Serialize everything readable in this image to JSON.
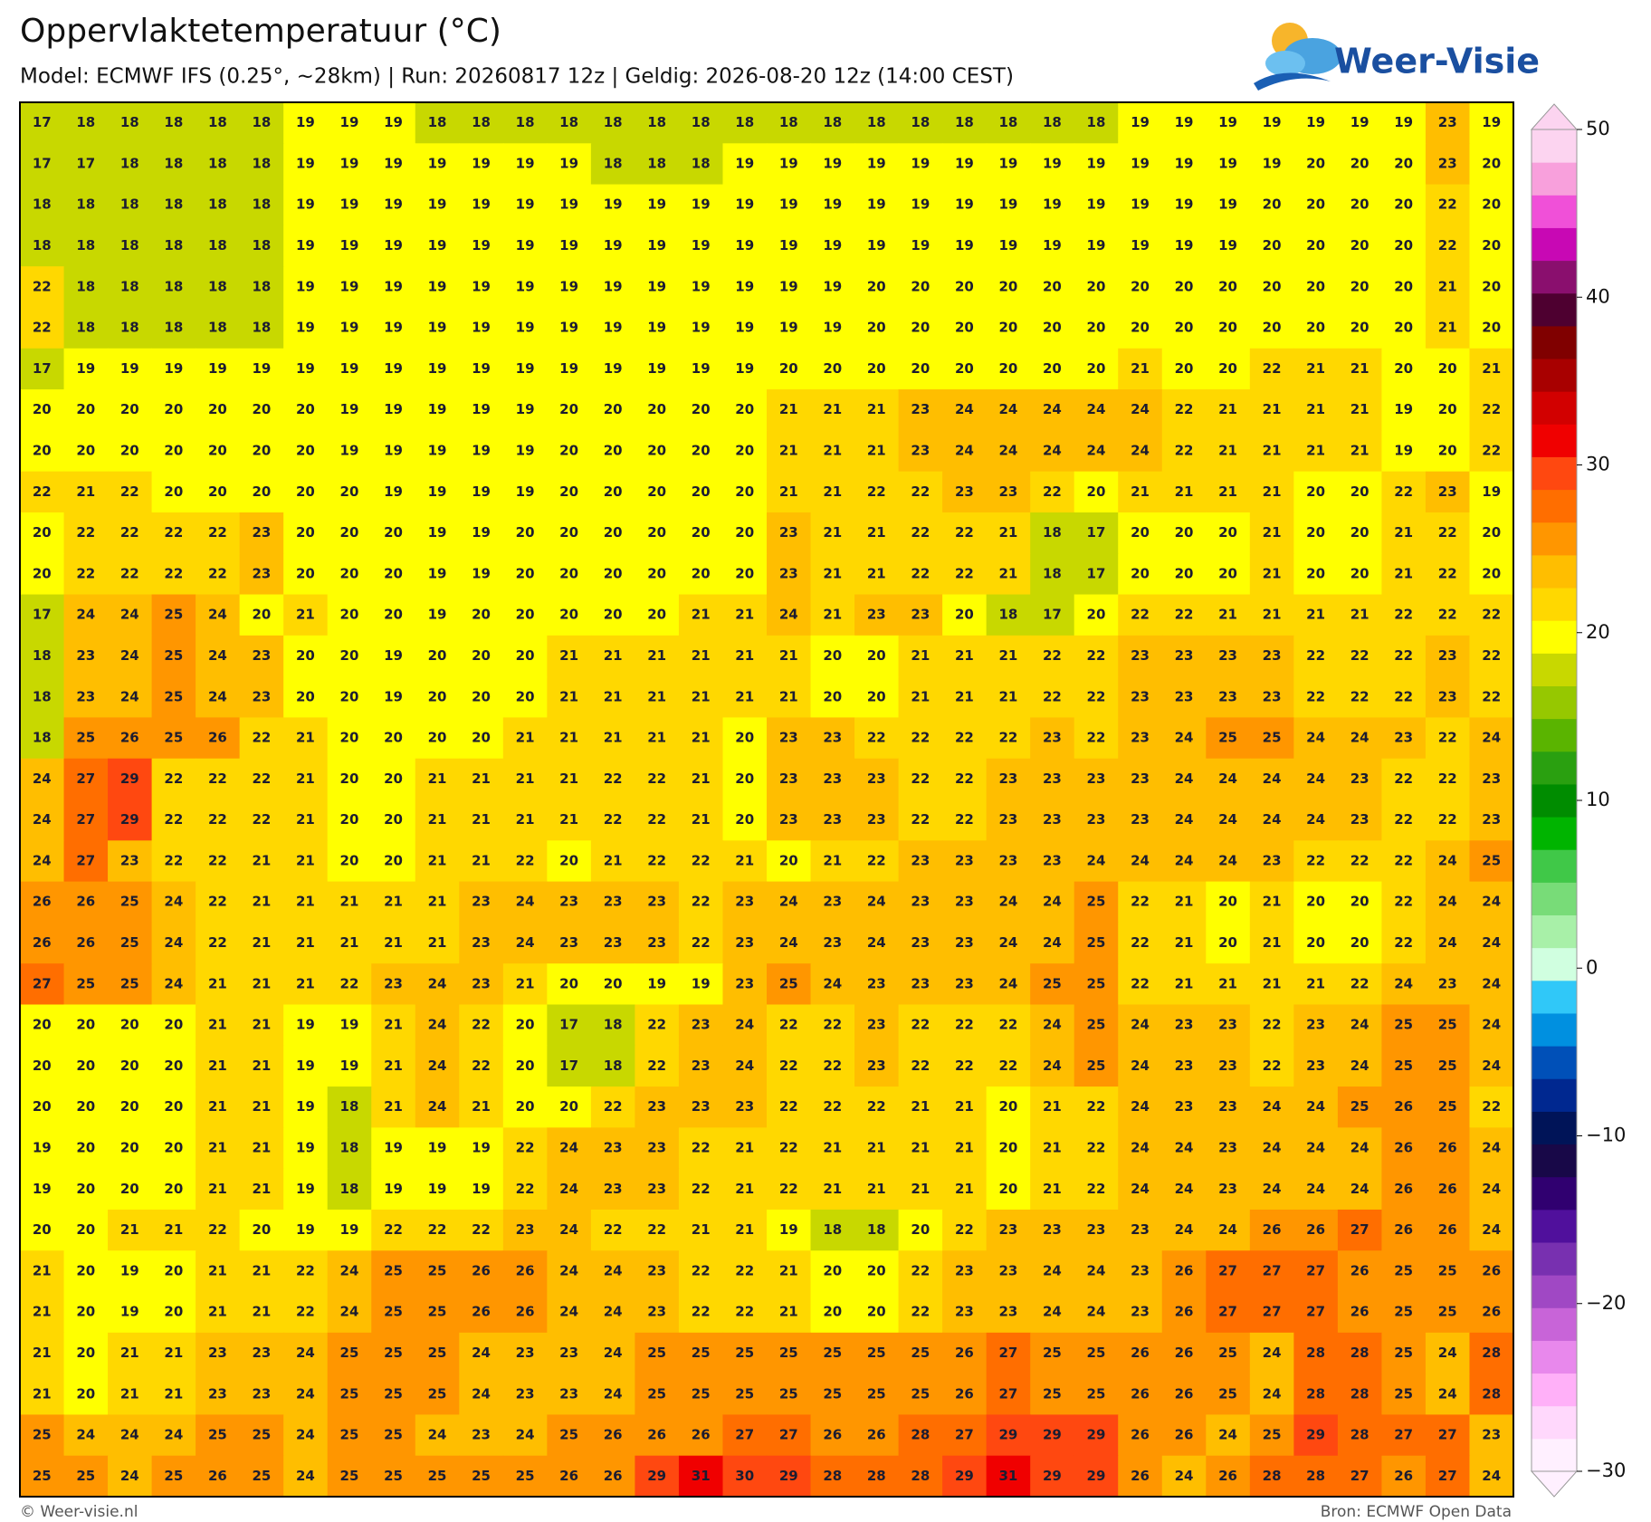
{
  "chart_data": {
    "type": "grid",
    "title": "Oppervlaktetemperatuur (°C)",
    "subtitle": "Model: ECMWF IFS (0.25°, ~28km)  |  Run: 20260817 12z  |  Geldig: 2026-08-20 12z (14:00 CEST)",
    "values": [
      [
        17,
        18,
        18,
        18,
        18,
        18,
        19,
        19,
        19,
        18,
        18,
        18,
        18,
        18,
        18,
        18,
        18,
        18,
        18,
        18,
        18,
        18,
        18,
        18,
        18,
        19,
        19,
        19,
        19,
        19,
        19,
        19,
        23,
        19
      ],
      [
        17,
        17,
        18,
        18,
        18,
        18,
        19,
        19,
        19,
        19,
        19,
        19,
        19,
        18,
        18,
        18,
        19,
        19,
        19,
        19,
        19,
        19,
        19,
        19,
        19,
        19,
        19,
        19,
        19,
        20,
        20,
        20,
        23,
        20
      ],
      [
        18,
        18,
        18,
        18,
        18,
        18,
        19,
        19,
        19,
        19,
        19,
        19,
        19,
        19,
        19,
        19,
        19,
        19,
        19,
        19,
        19,
        19,
        19,
        19,
        19,
        19,
        19,
        19,
        20,
        20,
        20,
        20,
        22,
        20
      ],
      [
        18,
        18,
        18,
        18,
        18,
        18,
        19,
        19,
        19,
        19,
        19,
        19,
        19,
        19,
        19,
        19,
        19,
        19,
        19,
        19,
        19,
        19,
        19,
        19,
        19,
        19,
        19,
        19,
        20,
        20,
        20,
        20,
        22,
        20
      ],
      [
        22,
        18,
        18,
        18,
        18,
        18,
        19,
        19,
        19,
        19,
        19,
        19,
        19,
        19,
        19,
        19,
        19,
        19,
        19,
        20,
        20,
        20,
        20,
        20,
        20,
        20,
        20,
        20,
        20,
        20,
        20,
        20,
        21,
        20
      ],
      [
        22,
        18,
        18,
        18,
        18,
        18,
        19,
        19,
        19,
        19,
        19,
        19,
        19,
        19,
        19,
        19,
        19,
        19,
        19,
        20,
        20,
        20,
        20,
        20,
        20,
        20,
        20,
        20,
        20,
        20,
        20,
        20,
        21,
        20
      ],
      [
        17,
        19,
        19,
        19,
        19,
        19,
        19,
        19,
        19,
        19,
        19,
        19,
        19,
        19,
        19,
        19,
        19,
        20,
        20,
        20,
        20,
        20,
        20,
        20,
        20,
        21,
        20,
        20,
        22,
        21,
        21,
        20,
        20,
        21
      ],
      [
        20,
        20,
        20,
        20,
        20,
        20,
        20,
        19,
        19,
        19,
        19,
        19,
        20,
        20,
        20,
        20,
        20,
        21,
        21,
        21,
        23,
        24,
        24,
        24,
        24,
        24,
        22,
        21,
        21,
        21,
        21,
        19,
        20,
        22
      ],
      [
        20,
        20,
        20,
        20,
        20,
        20,
        20,
        19,
        19,
        19,
        19,
        19,
        20,
        20,
        20,
        20,
        20,
        21,
        21,
        21,
        23,
        24,
        24,
        24,
        24,
        24,
        22,
        21,
        21,
        21,
        21,
        19,
        20,
        22
      ],
      [
        22,
        21,
        22,
        20,
        20,
        20,
        20,
        20,
        19,
        19,
        19,
        19,
        20,
        20,
        20,
        20,
        20,
        21,
        21,
        22,
        22,
        23,
        23,
        22,
        20,
        21,
        21,
        21,
        21,
        20,
        20,
        22,
        23,
        19
      ],
      [
        20,
        22,
        22,
        22,
        22,
        23,
        20,
        20,
        20,
        19,
        19,
        20,
        20,
        20,
        20,
        20,
        20,
        23,
        21,
        21,
        22,
        22,
        21,
        18,
        17,
        20,
        20,
        20,
        21,
        20,
        20,
        21,
        22,
        20
      ],
      [
        20,
        22,
        22,
        22,
        22,
        23,
        20,
        20,
        20,
        19,
        19,
        20,
        20,
        20,
        20,
        20,
        20,
        23,
        21,
        21,
        22,
        22,
        21,
        18,
        17,
        20,
        20,
        20,
        21,
        20,
        20,
        21,
        22,
        20
      ],
      [
        17,
        24,
        24,
        25,
        24,
        20,
        21,
        20,
        20,
        19,
        20,
        20,
        20,
        20,
        20,
        21,
        21,
        24,
        21,
        23,
        23,
        20,
        18,
        17,
        20,
        22,
        22,
        21,
        21,
        21,
        21,
        22,
        22,
        22
      ],
      [
        18,
        23,
        24,
        25,
        24,
        23,
        20,
        20,
        19,
        20,
        20,
        20,
        21,
        21,
        21,
        21,
        21,
        21,
        20,
        20,
        21,
        21,
        21,
        22,
        22,
        23,
        23,
        23,
        23,
        22,
        22,
        22,
        23,
        22
      ],
      [
        18,
        23,
        24,
        25,
        24,
        23,
        20,
        20,
        19,
        20,
        20,
        20,
        21,
        21,
        21,
        21,
        21,
        21,
        20,
        20,
        21,
        21,
        21,
        22,
        22,
        23,
        23,
        23,
        23,
        22,
        22,
        22,
        23,
        22
      ],
      [
        18,
        25,
        26,
        25,
        26,
        22,
        21,
        20,
        20,
        20,
        20,
        21,
        21,
        21,
        21,
        21,
        20,
        23,
        23,
        22,
        22,
        22,
        22,
        23,
        22,
        23,
        24,
        25,
        25,
        24,
        24,
        23,
        22,
        24
      ],
      [
        24,
        27,
        29,
        22,
        22,
        22,
        21,
        20,
        20,
        21,
        21,
        21,
        21,
        22,
        22,
        21,
        20,
        23,
        23,
        23,
        22,
        22,
        23,
        23,
        23,
        23,
        24,
        24,
        24,
        24,
        23,
        22,
        22,
        23
      ],
      [
        24,
        27,
        29,
        22,
        22,
        22,
        21,
        20,
        20,
        21,
        21,
        21,
        21,
        22,
        22,
        21,
        20,
        23,
        23,
        23,
        22,
        22,
        23,
        23,
        23,
        23,
        24,
        24,
        24,
        24,
        23,
        22,
        22,
        23
      ],
      [
        24,
        27,
        23,
        22,
        22,
        21,
        21,
        20,
        20,
        21,
        21,
        22,
        20,
        21,
        22,
        22,
        21,
        20,
        21,
        22,
        23,
        23,
        23,
        23,
        24,
        24,
        24,
        24,
        23,
        22,
        22,
        22,
        24,
        25
      ],
      [
        26,
        26,
        25,
        24,
        22,
        21,
        21,
        21,
        21,
        21,
        23,
        24,
        23,
        23,
        23,
        22,
        23,
        24,
        23,
        24,
        23,
        23,
        24,
        24,
        25,
        22,
        21,
        20,
        21,
        20,
        20,
        22,
        24,
        24
      ],
      [
        26,
        26,
        25,
        24,
        22,
        21,
        21,
        21,
        21,
        21,
        23,
        24,
        23,
        23,
        23,
        22,
        23,
        24,
        23,
        24,
        23,
        23,
        24,
        24,
        25,
        22,
        21,
        20,
        21,
        20,
        20,
        22,
        24,
        24
      ],
      [
        27,
        25,
        25,
        24,
        21,
        21,
        21,
        22,
        23,
        24,
        23,
        21,
        20,
        20,
        19,
        19,
        23,
        25,
        24,
        23,
        23,
        23,
        24,
        25,
        25,
        22,
        21,
        21,
        21,
        21,
        22,
        24,
        23,
        24
      ],
      [
        20,
        20,
        20,
        20,
        21,
        21,
        19,
        19,
        21,
        24,
        22,
        20,
        17,
        18,
        22,
        23,
        24,
        22,
        22,
        23,
        22,
        22,
        22,
        24,
        25,
        24,
        23,
        23,
        22,
        23,
        24,
        25,
        25,
        24
      ],
      [
        20,
        20,
        20,
        20,
        21,
        21,
        19,
        19,
        21,
        24,
        22,
        20,
        17,
        18,
        22,
        23,
        24,
        22,
        22,
        23,
        22,
        22,
        22,
        24,
        25,
        24,
        23,
        23,
        22,
        23,
        24,
        25,
        25,
        24
      ],
      [
        20,
        20,
        20,
        20,
        21,
        21,
        19,
        18,
        21,
        24,
        21,
        20,
        20,
        22,
        23,
        23,
        23,
        22,
        22,
        22,
        21,
        21,
        20,
        21,
        22,
        24,
        23,
        23,
        24,
        24,
        25,
        26,
        25,
        22
      ],
      [
        19,
        20,
        20,
        20,
        21,
        21,
        19,
        18,
        19,
        19,
        19,
        22,
        24,
        23,
        23,
        22,
        21,
        22,
        21,
        21,
        21,
        21,
        20,
        21,
        22,
        24,
        24,
        23,
        24,
        24,
        24,
        26,
        26,
        24
      ],
      [
        19,
        20,
        20,
        20,
        21,
        21,
        19,
        18,
        19,
        19,
        19,
        22,
        24,
        23,
        23,
        22,
        21,
        22,
        21,
        21,
        21,
        21,
        20,
        21,
        22,
        24,
        24,
        23,
        24,
        24,
        24,
        26,
        26,
        24
      ],
      [
        20,
        20,
        21,
        21,
        22,
        20,
        19,
        19,
        22,
        22,
        22,
        23,
        24,
        22,
        22,
        21,
        21,
        19,
        18,
        18,
        20,
        22,
        23,
        23,
        23,
        23,
        24,
        24,
        26,
        26,
        27,
        26,
        26,
        24
      ],
      [
        21,
        20,
        19,
        20,
        21,
        21,
        22,
        24,
        25,
        25,
        26,
        26,
        24,
        24,
        23,
        22,
        22,
        21,
        20,
        20,
        22,
        23,
        23,
        24,
        24,
        23,
        26,
        27,
        27,
        27,
        26,
        25,
        25,
        26
      ],
      [
        21,
        20,
        19,
        20,
        21,
        21,
        22,
        24,
        25,
        25,
        26,
        26,
        24,
        24,
        23,
        22,
        22,
        21,
        20,
        20,
        22,
        23,
        23,
        24,
        24,
        23,
        26,
        27,
        27,
        27,
        26,
        25,
        25,
        26
      ],
      [
        21,
        20,
        21,
        21,
        23,
        23,
        24,
        25,
        25,
        25,
        24,
        23,
        23,
        24,
        25,
        25,
        25,
        25,
        25,
        25,
        25,
        26,
        27,
        25,
        25,
        26,
        26,
        25,
        24,
        28,
        28,
        25,
        24,
        28
      ],
      [
        21,
        20,
        21,
        21,
        23,
        23,
        24,
        25,
        25,
        25,
        24,
        23,
        23,
        24,
        25,
        25,
        25,
        25,
        25,
        25,
        25,
        26,
        27,
        25,
        25,
        26,
        26,
        25,
        24,
        28,
        28,
        25,
        24,
        28
      ],
      [
        25,
        24,
        24,
        24,
        25,
        25,
        24,
        25,
        25,
        24,
        23,
        24,
        25,
        26,
        26,
        26,
        27,
        27,
        26,
        26,
        28,
        27,
        29,
        29,
        29,
        26,
        26,
        24,
        25,
        29,
        28,
        27,
        27,
        23
      ],
      [
        25,
        25,
        24,
        25,
        26,
        25,
        24,
        25,
        25,
        25,
        25,
        25,
        26,
        26,
        29,
        31,
        30,
        29,
        28,
        28,
        28,
        29,
        31,
        29,
        29,
        26,
        24,
        26,
        28,
        28,
        27,
        26,
        27,
        24
      ]
    ],
    "colorbar": {
      "lim": [
        -30,
        50
      ],
      "ticks": [
        {
          "value": -30,
          "label": "−30"
        },
        {
          "value": -20,
          "label": "−20"
        },
        {
          "value": -10,
          "label": "−10"
        },
        0,
        10,
        20,
        30,
        40,
        50
      ],
      "colors": [
        "#fff0ff",
        "#ffd8fc",
        "#ffb0f8",
        "#e888ec",
        "#c864d8",
        "#a048c4",
        "#7830b0",
        "#50109c",
        "#300070",
        "#180848",
        "#001458",
        "#002890",
        "#0050b8",
        "#0090e0",
        "#30c8f8",
        "#d0ffe0",
        "#a8f0a8",
        "#78dc78",
        "#40c848",
        "#00b400",
        "#008c00",
        "#2aa010",
        "#5ab400",
        "#96c800",
        "#c8d800",
        "#ffff00",
        "#ffd800",
        "#ffbe00",
        "#ff9600",
        "#ff6e00",
        "#ff4810",
        "#f00000",
        "#d20000",
        "#a80000",
        "#800000",
        "#4e0030",
        "#8a0f6e",
        "#c808b4",
        "#f050d8",
        "#f8a0dc",
        "#fcd4f0"
      ]
    }
  },
  "logo": "Weer-Visie",
  "footer_left": "© Weer-visie.nl",
  "footer_right": "Bron: ECMWF Open Data"
}
